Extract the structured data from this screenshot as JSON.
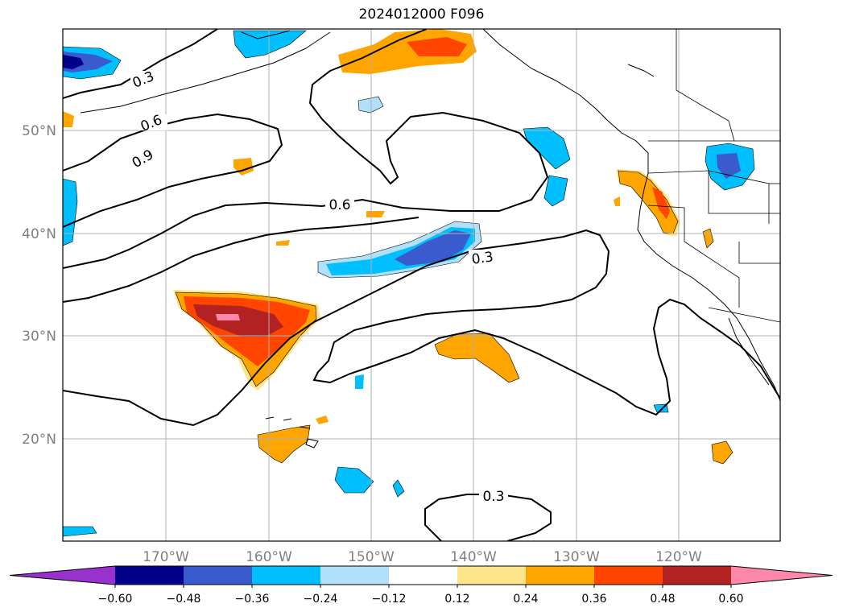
{
  "title": "2024012000 F096",
  "map": {
    "lat_labels": [
      "50°N",
      "40°N",
      "30°N",
      "20°N"
    ],
    "lon_labels": [
      "170°W",
      "160°W",
      "150°W",
      "140°W",
      "130°W",
      "120°W"
    ],
    "contour_labels": [
      "0.3",
      "0.6",
      "0.9",
      "0.6",
      "0.3",
      "0.3"
    ],
    "grid": true
  },
  "colorbar": {
    "colors": [
      "#9932cc",
      "#00008b",
      "#3a5bcd",
      "#00bfff",
      "#b0e0fa",
      "#ffffff",
      "#fce58a",
      "#ffa500",
      "#ff4500",
      "#b22222",
      "#ff88aa"
    ],
    "labels": [
      "−0.60",
      "−0.48",
      "−0.36",
      "−0.24",
      "−0.12",
      "0.12",
      "0.24",
      "0.36",
      "0.48",
      "0.60"
    ]
  }
}
